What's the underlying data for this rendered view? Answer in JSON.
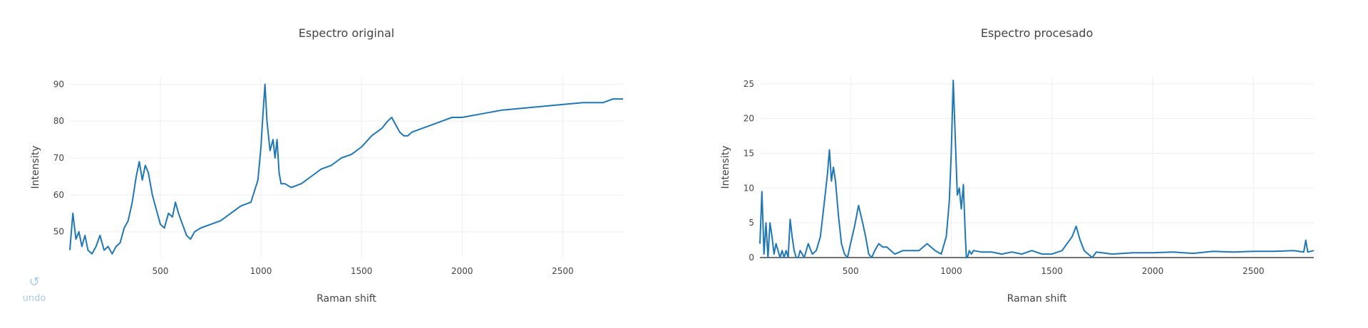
{
  "undo": {
    "icon": "undo-icon",
    "label": "undo"
  },
  "colors": {
    "line": "#1f77b4",
    "grid": "#eeeeee",
    "text": "#444444",
    "undo": "#a9cbe8"
  },
  "chart_data": [
    {
      "type": "line",
      "title": "Espectro original",
      "xlabel": "Raman shift",
      "ylabel": "Intensity",
      "xlim": [
        50,
        2800
      ],
      "ylim": [
        43,
        92
      ],
      "xticks": [
        500,
        1000,
        1500,
        2000,
        2500
      ],
      "yticks": [
        50,
        60,
        70,
        80,
        90
      ],
      "grid": true,
      "series": [
        {
          "x": [
            50,
            65,
            80,
            95,
            110,
            125,
            140,
            160,
            180,
            200,
            220,
            240,
            260,
            280,
            300,
            320,
            340,
            360,
            380,
            395,
            410,
            425,
            440,
            460,
            480,
            500,
            520,
            540,
            560,
            575,
            590,
            610,
            630,
            650,
            670,
            700,
            750,
            800,
            850,
            900,
            950,
            985,
            1000,
            1010,
            1020,
            1030,
            1045,
            1060,
            1070,
            1080,
            1090,
            1100,
            1120,
            1150,
            1200,
            1250,
            1300,
            1350,
            1400,
            1450,
            1500,
            1550,
            1600,
            1630,
            1650,
            1670,
            1690,
            1710,
            1730,
            1750,
            1800,
            1850,
            1900,
            1950,
            2000,
            2100,
            2200,
            2300,
            2400,
            2500,
            2600,
            2700,
            2750,
            2800
          ],
          "y": [
            45,
            55,
            48,
            50,
            46,
            49,
            45,
            44,
            46,
            49,
            45,
            46,
            44,
            46,
            47,
            51,
            53,
            58,
            65,
            69,
            64,
            68,
            66,
            60,
            56,
            52,
            51,
            55,
            54,
            58,
            55,
            52,
            49,
            48,
            50,
            51,
            52,
            53,
            55,
            57,
            58,
            64,
            73,
            82,
            90,
            80,
            72,
            75,
            70,
            75,
            66,
            63,
            63,
            62,
            63,
            65,
            67,
            68,
            70,
            71,
            73,
            76,
            78,
            80,
            81,
            79,
            77,
            76,
            76,
            77,
            78,
            79,
            80,
            81,
            81,
            82,
            83,
            83.5,
            84,
            84.5,
            85,
            85,
            86,
            86
          ]
        }
      ]
    },
    {
      "type": "line",
      "title": "Espectro procesado",
      "xlabel": "Raman shift",
      "ylabel": "Intensity",
      "xlim": [
        50,
        2800
      ],
      "ylim": [
        0,
        26
      ],
      "xticks": [
        500,
        1000,
        1500,
        2000,
        2500
      ],
      "yticks": [
        0,
        5,
        10,
        15,
        20,
        25
      ],
      "grid": true,
      "series": [
        {
          "x": [
            50,
            60,
            70,
            80,
            90,
            100,
            110,
            120,
            130,
            140,
            150,
            160,
            170,
            180,
            190,
            200,
            210,
            220,
            230,
            240,
            250,
            270,
            290,
            310,
            330,
            350,
            370,
            385,
            395,
            405,
            415,
            425,
            440,
            455,
            470,
            485,
            500,
            520,
            540,
            560,
            575,
            590,
            605,
            620,
            640,
            660,
            680,
            700,
            720,
            760,
            800,
            840,
            880,
            920,
            950,
            975,
            990,
            1000,
            1010,
            1020,
            1030,
            1040,
            1050,
            1060,
            1070,
            1075,
            1080,
            1090,
            1100,
            1110,
            1150,
            1200,
            1250,
            1300,
            1350,
            1400,
            1450,
            1500,
            1550,
            1600,
            1620,
            1640,
            1660,
            1680,
            1700,
            1720,
            1800,
            1900,
            2000,
            2100,
            2200,
            2300,
            2400,
            2500,
            2600,
            2700,
            2750,
            2760,
            2770,
            2800
          ],
          "y": [
            2,
            9.5,
            0.5,
            5,
            0,
            5,
            3,
            0.5,
            2,
            1,
            0,
            1,
            0,
            1,
            0,
            5.5,
            3,
            1,
            0,
            0,
            1,
            0,
            2,
            0.5,
            1,
            3,
            8,
            12,
            15.5,
            11,
            13,
            11,
            6,
            2,
            0.5,
            0,
            2,
            4.5,
            7.5,
            5,
            3,
            0.5,
            0,
            1,
            2,
            1.5,
            1.5,
            1,
            0.5,
            1,
            1,
            1,
            2,
            1,
            0.5,
            3,
            8,
            15,
            25.5,
            17,
            9,
            10,
            7,
            10.5,
            3,
            0,
            0,
            1,
            0.5,
            1,
            0.8,
            0.8,
            0.5,
            0.8,
            0.5,
            1,
            0.5,
            0.5,
            1,
            3,
            4.5,
            2.5,
            1,
            0.5,
            0,
            0.8,
            0.5,
            0.7,
            0.7,
            0.8,
            0.6,
            0.9,
            0.8,
            0.9,
            0.9,
            1,
            0.8,
            2.5,
            0.8,
            1
          ]
        }
      ]
    }
  ]
}
